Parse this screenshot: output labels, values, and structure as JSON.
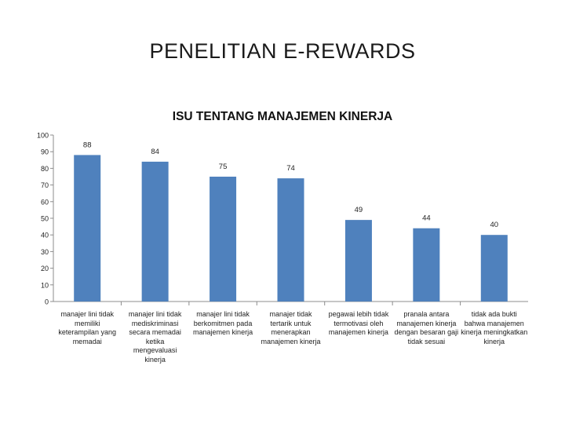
{
  "slide": {
    "title": "PENELITIAN E-REWARDS"
  },
  "chart_data": {
    "type": "bar",
    "title": "ISU TENTANG MANAJEMEN KINERJA",
    "xlabel": "",
    "ylabel": "",
    "ylim": [
      0,
      100
    ],
    "yticks": [
      0,
      10,
      20,
      30,
      40,
      50,
      60,
      70,
      80,
      90,
      100
    ],
    "grid": false,
    "legend": "none",
    "bar_color": "#4f81bd",
    "categories": [
      "manajer lini tidak memiliki keterampilan yang memadai",
      "manajer lini tidak mediskriminasi secara memadai ketika mengevaluasi kinerja",
      "manajer lini tidak berkomitmen pada manajemen kinerja",
      "manajer tidak tertarik untuk menerapkan manajemen kinerja",
      "pegawai lebih tidak termotivasi oleh manajemen kinerja",
      "pranala antara manajemen kinerja dengan besaran gaji tidak sesuai",
      "tidak ada bukti bahwa manajemen kinerja meningkatkan kinerja"
    ],
    "category_lines": [
      [
        "manajer lini tidak",
        "memiliki",
        "keterampilan yang",
        "memadai"
      ],
      [
        "manajer lini tidak",
        "mediskriminasi",
        "secara memadai",
        "ketika",
        "mengevaluasi",
        "kinerja"
      ],
      [
        "manajer lini tidak",
        "berkomitmen pada",
        "manajemen kinerja"
      ],
      [
        "manajer tidak",
        "tertarik untuk",
        "menerapkan",
        "manajemen kinerja"
      ],
      [
        "pegawai lebih tidak",
        "termotivasi oleh",
        "manajemen kinerja"
      ],
      [
        "pranala antara",
        "manajemen kinerja",
        "dengan besaran gaji",
        "tidak sesuai"
      ],
      [
        "tidak ada bukti",
        "bahwa manajemen",
        "kinerja meningkatkan",
        "kinerja"
      ]
    ],
    "values": [
      88,
      84,
      75,
      74,
      49,
      44,
      40
    ]
  }
}
